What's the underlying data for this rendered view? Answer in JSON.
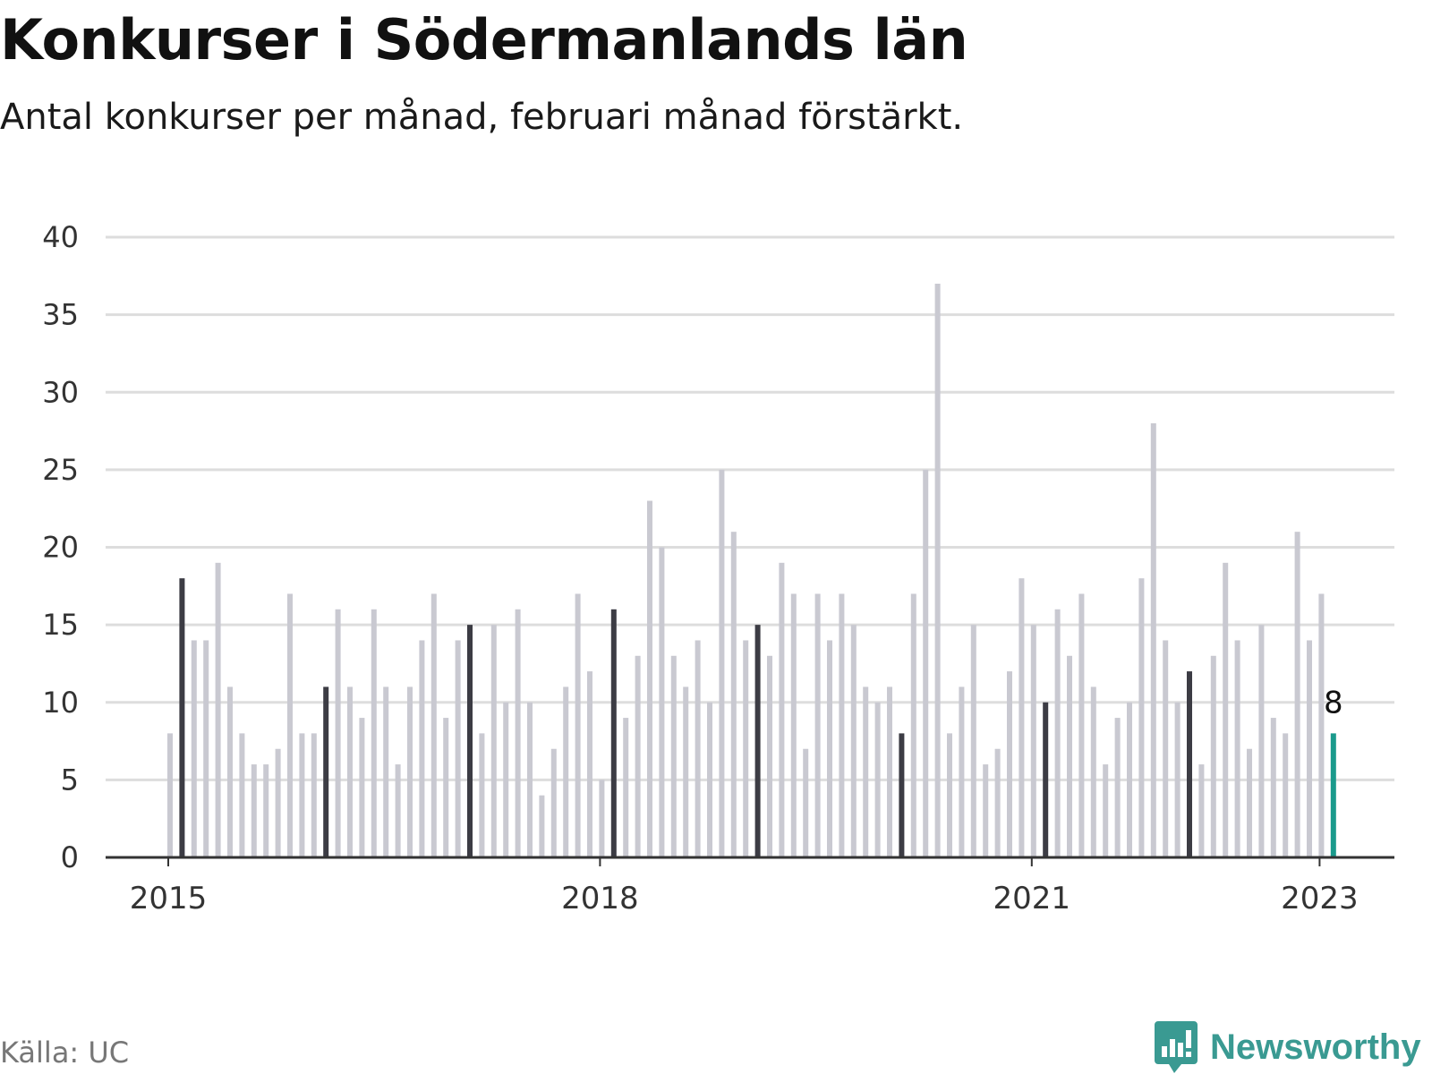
{
  "title": "Konkurser i Södermanlands län",
  "subtitle": "Antal konkurser per månad, februari månad förstärkt.",
  "source": "Källa: UC",
  "brand": {
    "name": "Newsworthy",
    "icon": "bar-chart-speech-bubble-icon"
  },
  "colors": {
    "bar": "#c9c9d1",
    "highlight": "#3c3c44",
    "latest": "#1a9a8c",
    "grid": "#dddddd",
    "axis": "#333333"
  },
  "chart_data": {
    "type": "bar",
    "x_start": "2015-01",
    "values": [
      8,
      18,
      14,
      14,
      19,
      11,
      8,
      6,
      6,
      7,
      17,
      8,
      8,
      11,
      16,
      11,
      9,
      16,
      11,
      6,
      11,
      14,
      17,
      9,
      14,
      15,
      8,
      15,
      10,
      16,
      10,
      4,
      7,
      11,
      17,
      12,
      5,
      16,
      9,
      13,
      23,
      20,
      13,
      11,
      14,
      10,
      25,
      21,
      14,
      15,
      13,
      19,
      17,
      7,
      17,
      14,
      17,
      15,
      11,
      10,
      11,
      8,
      17,
      25,
      37,
      8,
      11,
      15,
      6,
      7,
      12,
      18,
      15,
      10,
      16,
      13,
      17,
      11,
      6,
      9,
      10,
      18,
      28,
      14,
      10,
      12,
      6,
      13,
      19,
      14,
      7,
      15,
      9,
      8,
      21,
      14,
      17,
      8
    ],
    "highlight": "february",
    "latest_label": "8",
    "ylim": [
      0,
      40
    ],
    "yticks": [
      0,
      5,
      10,
      15,
      20,
      25,
      30,
      35,
      40
    ],
    "xticks": [
      {
        "label": "2015",
        "index": 0
      },
      {
        "label": "2018",
        "index": 36
      },
      {
        "label": "2021",
        "index": 72
      },
      {
        "label": "2023",
        "index": 96
      }
    ],
    "grid": true,
    "legend": "none"
  }
}
